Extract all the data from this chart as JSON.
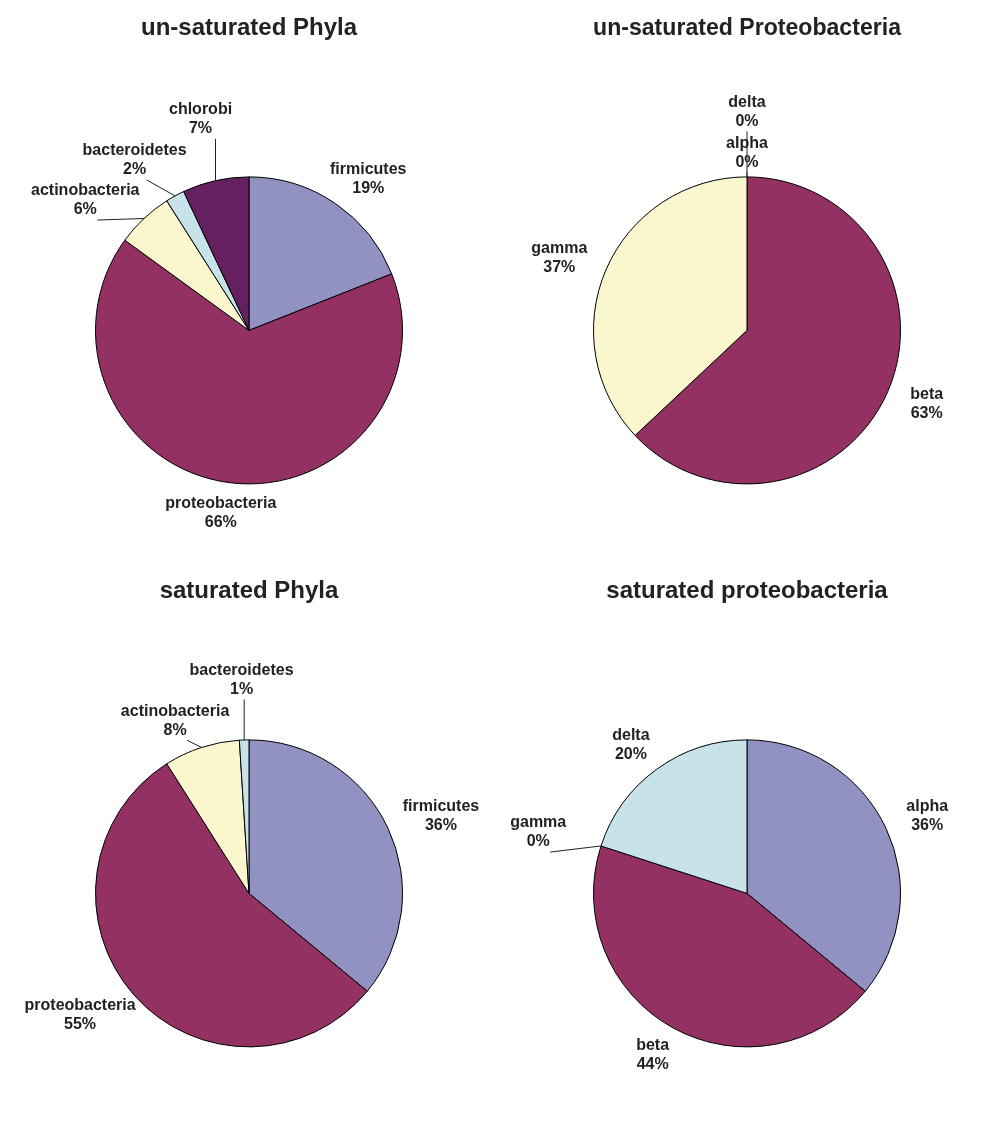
{
  "chart_data": [
    {
      "type": "pie",
      "title": "un-saturated Phyla",
      "categories": [
        "firmicutes",
        "proteobacteria",
        "actinobacteria",
        "bacteroidetes",
        "chlorobi"
      ],
      "values": [
        19,
        66,
        6,
        2,
        7
      ],
      "value_labels": [
        "19%",
        "66%",
        "6%",
        "2%",
        "7%"
      ],
      "colors": [
        "#9292c2",
        "#933162",
        "#faf7cf",
        "#c8e2ea",
        "#652060"
      ]
    },
    {
      "type": "pie",
      "title": "un-saturated Proteobacteria",
      "categories": [
        "alpha",
        "beta",
        "gamma",
        "delta"
      ],
      "values": [
        0,
        63,
        37,
        0
      ],
      "value_labels": [
        "0%",
        "63%",
        "37%",
        "0%"
      ],
      "colors": [
        "#9292c2",
        "#933162",
        "#faf7cf",
        "#c8e2ea"
      ]
    },
    {
      "type": "pie",
      "title": "saturated Phyla",
      "categories": [
        "firmicutes",
        "proteobacteria",
        "actinobacteria",
        "bacteroidetes"
      ],
      "values": [
        36,
        55,
        8,
        1
      ],
      "value_labels": [
        "36%",
        "55%",
        "8%",
        "1%"
      ],
      "colors": [
        "#9292c2",
        "#933162",
        "#faf7cf",
        "#c8e2ea"
      ]
    },
    {
      "type": "pie",
      "title": "saturated proteobacteria",
      "categories": [
        "alpha",
        "beta",
        "gamma",
        "delta"
      ],
      "values": [
        36,
        44,
        0,
        20
      ],
      "value_labels": [
        "36%",
        "44%",
        "0%",
        "20%"
      ],
      "colors": [
        "#9292c2",
        "#933162",
        "#faf7cf",
        "#c8e2ea"
      ]
    }
  ]
}
